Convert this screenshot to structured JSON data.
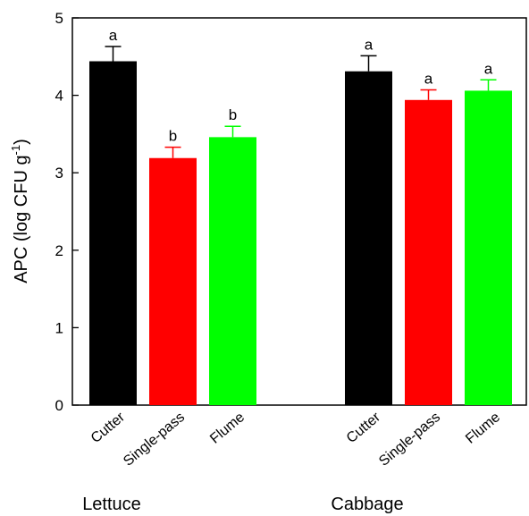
{
  "chart_data": {
    "type": "bar",
    "ylabel": "APC (log CFU g",
    "ylabel_superscript": "-1",
    "ylabel_close": ")",
    "ylim": [
      0,
      5
    ],
    "yticks": [
      "0",
      "1",
      "2",
      "3",
      "4",
      "5"
    ],
    "grid": false,
    "groups": [
      {
        "name": "Lettuce",
        "bars": [
          {
            "category": "Cutter",
            "value": 4.44,
            "error": 0.19,
            "letter": "a",
            "color": "#000000"
          },
          {
            "category": "Single-pass",
            "value": 3.19,
            "error": 0.14,
            "letter": "b",
            "color": "#ff0000"
          },
          {
            "category": "Flume",
            "value": 3.46,
            "error": 0.14,
            "letter": "b",
            "color": "#00ff00"
          }
        ]
      },
      {
        "name": "Cabbage",
        "bars": [
          {
            "category": "Cutter",
            "value": 4.31,
            "error": 0.2,
            "letter": "a",
            "color": "#000000"
          },
          {
            "category": "Single-pass",
            "value": 3.94,
            "error": 0.13,
            "letter": "a",
            "color": "#ff0000"
          },
          {
            "category": "Flume",
            "value": 4.06,
            "error": 0.14,
            "letter": "a",
            "color": "#00ff00"
          }
        ]
      }
    ]
  }
}
